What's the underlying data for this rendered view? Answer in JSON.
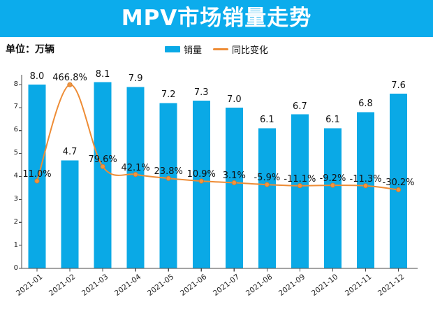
{
  "header": {
    "title": "MPV市场销量走势",
    "banner_color": "#0CACEC",
    "title_color": "#FFFFFF"
  },
  "unit_label": "单位：万辆",
  "legend": {
    "items": [
      {
        "label": "销量",
        "swatch": "bar",
        "color": "#0AA9E6"
      },
      {
        "label": "同比变化",
        "swatch": "line",
        "color": "#EE8C35"
      }
    ]
  },
  "chart_data": {
    "type": "bar",
    "title": "MPV市场销量走势",
    "categories": [
      "2021-01",
      "2021-02",
      "2021-03",
      "2021-04",
      "2021-05",
      "2021-06",
      "2021-07",
      "2021-08",
      "2021-09",
      "2021-10",
      "2021-11",
      "2021-12"
    ],
    "series": [
      {
        "name": "销量",
        "type": "bar",
        "unit": "万辆",
        "color": "#0AA9E6",
        "values": [
          8.0,
          4.7,
          8.1,
          7.9,
          7.2,
          7.3,
          7.0,
          6.1,
          6.7,
          6.1,
          6.8,
          7.6
        ],
        "labels": [
          "8.0",
          "4.7",
          "8.1",
          "7.9",
          "7.2",
          "7.3",
          "7.0",
          "6.1",
          "6.7",
          "6.1",
          "6.8",
          "7.6"
        ]
      },
      {
        "name": "同比变化",
        "type": "line",
        "unit": "%",
        "color": "#EE8C35",
        "values": [
          11.0,
          466.8,
          79.6,
          42.1,
          23.8,
          10.9,
          3.1,
          -5.9,
          -11.1,
          -9.2,
          -11.3,
          -30.2
        ],
        "labels": [
          "11.0%",
          "466.8%",
          "79.6%",
          "42.1%",
          "23.8%",
          "10.9%",
          "3.1%",
          "-5.9%",
          "-11.1%",
          "-9.2%",
          "-11.3%",
          "-30.2%"
        ]
      }
    ],
    "y_axis": {
      "ticks": [
        0,
        1,
        2,
        3,
        4,
        5,
        6,
        7,
        8
      ],
      "min": 0,
      "max": 8.4
    },
    "grid": false,
    "legend_position": "top-center"
  }
}
